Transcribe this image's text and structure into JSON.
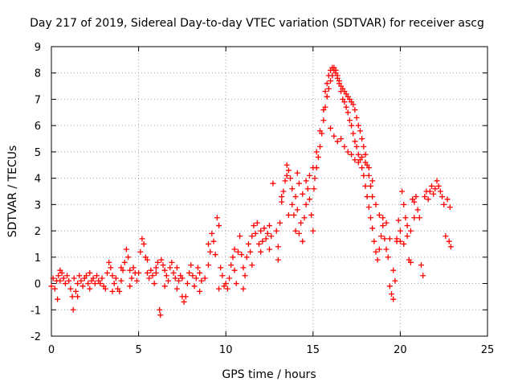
{
  "chart_data": {
    "type": "scatter",
    "title": "Day 217 of 2019, Sidereal Day-to-day VTEC variation (SDTVAR) for receiver ascg",
    "xlabel": "GPS time / hours",
    "ylabel": "SDTVAR / TECUs",
    "xlim": [
      0,
      25
    ],
    "ylim": [
      -2,
      9
    ],
    "xticks": [
      0,
      5,
      10,
      15,
      20,
      25
    ],
    "yticks": [
      -2,
      -1,
      0,
      1,
      2,
      3,
      4,
      5,
      6,
      7,
      8,
      9
    ],
    "x_tick_labels": [
      "0",
      "5",
      "10",
      "15",
      "20",
      "25"
    ],
    "y_tick_labels": [
      "-2",
      "-1",
      "0",
      "1",
      "2",
      "3",
      "4",
      "5",
      "6",
      "7",
      "8",
      "9"
    ],
    "grid": true,
    "marker": "+",
    "color": "#ff0000",
    "series": [
      {
        "name": "SDTVAR",
        "points": [
          [
            0.0,
            -0.1
          ],
          [
            0.1,
            0.2
          ],
          [
            0.2,
            -0.2
          ],
          [
            0.3,
            0.1
          ],
          [
            0.35,
            -0.6
          ],
          [
            0.4,
            0.3
          ],
          [
            0.5,
            0.1
          ],
          [
            0.6,
            0.4
          ],
          [
            0.7,
            0.2
          ],
          [
            0.8,
            0.0
          ],
          [
            0.9,
            0.3
          ],
          [
            1.0,
            0.1
          ],
          [
            1.1,
            -0.2
          ],
          [
            1.2,
            -0.5
          ],
          [
            1.25,
            -1.0
          ],
          [
            1.3,
            0.2
          ],
          [
            1.4,
            -0.3
          ],
          [
            1.5,
            0.0
          ],
          [
            1.6,
            0.3
          ],
          [
            1.7,
            0.1
          ],
          [
            1.8,
            -0.1
          ],
          [
            1.9,
            0.2
          ],
          [
            2.0,
            0.3
          ],
          [
            2.1,
            0.0
          ],
          [
            2.2,
            -0.2
          ],
          [
            2.3,
            0.1
          ],
          [
            2.4,
            0.2
          ],
          [
            2.5,
            0.0
          ],
          [
            2.6,
            0.3
          ],
          [
            2.7,
            0.1
          ],
          [
            2.8,
            0.0
          ],
          [
            2.9,
            0.2
          ],
          [
            3.0,
            -0.1
          ],
          [
            3.1,
            -0.2
          ],
          [
            3.2,
            0.4
          ],
          [
            3.3,
            0.8
          ],
          [
            3.4,
            0.6
          ],
          [
            3.5,
            0.3
          ],
          [
            3.6,
            0.0
          ],
          [
            3.7,
            0.2
          ],
          [
            3.8,
            -0.2
          ],
          [
            3.9,
            -0.3
          ],
          [
            4.0,
            0.1
          ],
          [
            4.1,
            0.5
          ],
          [
            4.2,
            0.8
          ],
          [
            4.3,
            1.3
          ],
          [
            4.4,
            1.0
          ],
          [
            4.5,
            0.5
          ],
          [
            4.6,
            0.2
          ],
          [
            4.7,
            0.6
          ],
          [
            4.8,
            0.4
          ],
          [
            4.9,
            0.1
          ],
          [
            5.0,
            0.4
          ],
          [
            5.1,
            1.2
          ],
          [
            5.2,
            1.7
          ],
          [
            5.3,
            1.5
          ],
          [
            5.4,
            1.0
          ],
          [
            5.5,
            0.4
          ],
          [
            5.6,
            0.2
          ],
          [
            5.7,
            0.5
          ],
          [
            5.8,
            0.3
          ],
          [
            5.9,
            0.0
          ],
          [
            6.0,
            0.6
          ],
          [
            6.1,
            0.8
          ],
          [
            6.2,
            -1.0
          ],
          [
            6.25,
            -1.2
          ],
          [
            6.3,
            0.9
          ],
          [
            6.4,
            0.7
          ],
          [
            6.5,
            0.5
          ],
          [
            6.6,
            0.3
          ],
          [
            6.7,
            0.1
          ],
          [
            6.8,
            0.6
          ],
          [
            6.9,
            0.8
          ],
          [
            7.0,
            0.4
          ],
          [
            7.1,
            0.2
          ],
          [
            7.2,
            0.6
          ],
          [
            7.3,
            0.1
          ],
          [
            7.4,
            0.3
          ],
          [
            7.5,
            -0.5
          ],
          [
            7.6,
            -0.7
          ],
          [
            7.7,
            -0.5
          ],
          [
            7.8,
            0.0
          ],
          [
            7.9,
            0.4
          ],
          [
            8.0,
            0.7
          ],
          [
            8.1,
            0.3
          ],
          [
            8.2,
            -0.1
          ],
          [
            8.3,
            0.2
          ],
          [
            8.4,
            0.6
          ],
          [
            8.5,
            0.4
          ],
          [
            8.6,
            0.1
          ],
          [
            8.8,
            0.2
          ],
          [
            9.0,
            0.7
          ],
          [
            9.1,
            1.2
          ],
          [
            9.2,
            1.9
          ],
          [
            9.3,
            1.6
          ],
          [
            9.4,
            1.1
          ],
          [
            9.5,
            2.5
          ],
          [
            9.6,
            2.2
          ],
          [
            9.7,
            0.6
          ],
          [
            9.8,
            0.3
          ],
          [
            9.9,
            -0.1
          ],
          [
            10.0,
            0.0
          ],
          [
            10.1,
            -0.2
          ],
          [
            10.2,
            0.2
          ],
          [
            10.3,
            0.7
          ],
          [
            10.4,
            1.0
          ],
          [
            10.5,
            0.5
          ],
          [
            10.6,
            0.0
          ],
          [
            10.7,
            1.2
          ],
          [
            10.8,
            1.8
          ],
          [
            10.9,
            1.1
          ],
          [
            11.0,
            0.6
          ],
          [
            11.1,
            0.3
          ],
          [
            11.2,
            1.0
          ],
          [
            11.3,
            1.5
          ],
          [
            11.4,
            1.2
          ],
          [
            11.5,
            1.8
          ],
          [
            11.6,
            2.2
          ],
          [
            11.7,
            1.9
          ],
          [
            11.8,
            2.3
          ],
          [
            11.9,
            1.5
          ],
          [
            12.0,
            1.2
          ],
          [
            12.1,
            1.6
          ],
          [
            12.2,
            2.1
          ],
          [
            12.3,
            1.7
          ],
          [
            12.4,
            1.9
          ],
          [
            12.5,
            2.2
          ],
          [
            12.6,
            1.8
          ],
          [
            12.7,
            3.8
          ],
          [
            12.9,
            2.0
          ],
          [
            13.0,
            1.4
          ],
          [
            13.1,
            2.3
          ],
          [
            13.2,
            3.1
          ],
          [
            13.3,
            3.5
          ],
          [
            13.4,
            3.9
          ],
          [
            13.5,
            4.1
          ],
          [
            13.6,
            4.3
          ],
          [
            13.7,
            4.0
          ],
          [
            13.8,
            3.6
          ],
          [
            13.9,
            2.6
          ],
          [
            14.0,
            3.3
          ],
          [
            14.1,
            4.2
          ],
          [
            14.2,
            3.8
          ],
          [
            14.3,
            2.3
          ],
          [
            14.4,
            1.6
          ],
          [
            14.5,
            2.5
          ],
          [
            14.6,
            3.0
          ],
          [
            14.7,
            3.6
          ],
          [
            14.8,
            3.2
          ],
          [
            14.9,
            2.6
          ],
          [
            15.0,
            2.0
          ],
          [
            15.05,
            3.6
          ],
          [
            15.1,
            4.0
          ],
          [
            15.2,
            4.4
          ],
          [
            15.3,
            4.8
          ],
          [
            15.4,
            5.2
          ],
          [
            15.5,
            5.7
          ],
          [
            15.6,
            6.2
          ],
          [
            15.7,
            6.7
          ],
          [
            15.8,
            7.1
          ],
          [
            15.9,
            7.4
          ],
          [
            16.0,
            7.7
          ],
          [
            16.1,
            7.9
          ],
          [
            16.2,
            8.1
          ],
          [
            16.3,
            8.0
          ],
          [
            16.4,
            7.8
          ],
          [
            16.5,
            7.6
          ],
          [
            16.6,
            7.3
          ],
          [
            16.7,
            7.0
          ],
          [
            16.8,
            6.9
          ],
          [
            16.9,
            6.7
          ],
          [
            17.0,
            6.5
          ],
          [
            17.1,
            6.2
          ],
          [
            17.2,
            6.0
          ],
          [
            17.3,
            5.7
          ],
          [
            17.4,
            5.4
          ],
          [
            17.5,
            5.2
          ],
          [
            17.6,
            4.9
          ],
          [
            17.7,
            4.7
          ],
          [
            17.8,
            4.4
          ],
          [
            17.9,
            4.1
          ],
          [
            18.0,
            3.7
          ],
          [
            18.1,
            3.3
          ],
          [
            18.2,
            2.9
          ],
          [
            18.3,
            2.5
          ],
          [
            18.4,
            2.1
          ],
          [
            18.5,
            1.6
          ],
          [
            18.6,
            1.2
          ],
          [
            18.7,
            0.9
          ],
          [
            18.8,
            1.3
          ],
          [
            18.9,
            1.8
          ],
          [
            19.0,
            2.2
          ],
          [
            19.1,
            1.7
          ],
          [
            19.2,
            1.3
          ],
          [
            19.3,
            1.0
          ],
          [
            19.4,
            -0.1
          ],
          [
            19.5,
            -0.4
          ],
          [
            19.6,
            -0.6
          ],
          [
            19.7,
            0.1
          ],
          [
            19.8,
            1.6
          ],
          [
            19.9,
            2.4
          ],
          [
            20.0,
            2.0
          ],
          [
            20.1,
            3.5
          ],
          [
            20.2,
            3.0
          ],
          [
            20.3,
            2.5
          ],
          [
            20.4,
            1.8
          ],
          [
            20.5,
            0.9
          ],
          [
            20.6,
            0.8
          ],
          [
            20.7,
            3.2
          ],
          [
            20.8,
            3.1
          ],
          [
            20.9,
            3.3
          ],
          [
            21.0,
            2.8
          ],
          [
            21.1,
            2.5
          ],
          [
            21.2,
            0.7
          ],
          [
            21.3,
            0.3
          ],
          [
            21.4,
            3.3
          ],
          [
            21.5,
            3.5
          ],
          [
            21.6,
            3.2
          ],
          [
            21.7,
            3.5
          ],
          [
            21.8,
            3.7
          ],
          [
            21.9,
            3.4
          ],
          [
            22.0,
            3.6
          ],
          [
            22.1,
            3.9
          ],
          [
            22.2,
            3.7
          ],
          [
            22.3,
            3.5
          ],
          [
            22.4,
            3.3
          ],
          [
            22.5,
            3.0
          ],
          [
            22.6,
            1.8
          ],
          [
            22.7,
            3.2
          ],
          [
            22.8,
            1.6
          ],
          [
            22.85,
            2.9
          ],
          [
            22.9,
            1.4
          ],
          [
            15.7,
            7.3
          ],
          [
            15.8,
            7.6
          ],
          [
            15.9,
            7.9
          ],
          [
            16.0,
            8.1
          ],
          [
            16.1,
            8.2
          ],
          [
            16.2,
            8.2
          ],
          [
            16.3,
            8.1
          ],
          [
            16.4,
            7.9
          ],
          [
            16.5,
            7.7
          ],
          [
            16.6,
            7.5
          ],
          [
            16.7,
            7.4
          ],
          [
            16.8,
            7.3
          ],
          [
            16.9,
            7.2
          ],
          [
            17.0,
            7.1
          ],
          [
            17.1,
            7.0
          ],
          [
            17.2,
            6.9
          ],
          [
            17.3,
            6.8
          ],
          [
            17.4,
            6.6
          ],
          [
            17.5,
            6.3
          ],
          [
            17.6,
            6.0
          ],
          [
            17.7,
            5.8
          ],
          [
            17.8,
            5.5
          ],
          [
            17.9,
            5.2
          ],
          [
            18.0,
            4.9
          ],
          [
            18.1,
            4.5
          ],
          [
            18.2,
            4.1
          ],
          [
            18.3,
            3.7
          ],
          [
            18.4,
            3.3
          ],
          [
            16.0,
            5.9
          ],
          [
            16.2,
            5.6
          ],
          [
            16.4,
            5.4
          ],
          [
            16.6,
            5.5
          ],
          [
            16.8,
            5.2
          ],
          [
            17.0,
            5.0
          ],
          [
            17.2,
            4.9
          ],
          [
            17.4,
            4.7
          ],
          [
            17.6,
            4.6
          ],
          [
            17.8,
            4.8
          ],
          [
            18.0,
            4.6
          ],
          [
            18.2,
            4.4
          ],
          [
            18.4,
            3.9
          ],
          [
            18.6,
            3.0
          ],
          [
            18.8,
            2.6
          ],
          [
            19.0,
            2.5
          ],
          [
            19.2,
            2.3
          ],
          [
            19.4,
            1.7
          ],
          [
            19.6,
            0.5
          ],
          [
            19.8,
            1.7
          ],
          [
            20.0,
            1.6
          ],
          [
            20.2,
            1.5
          ],
          [
            20.4,
            2.2
          ],
          [
            20.6,
            2.0
          ],
          [
            20.8,
            2.5
          ],
          [
            14.0,
            2.0
          ],
          [
            14.2,
            1.9
          ],
          [
            14.4,
            3.4
          ],
          [
            14.6,
            3.9
          ],
          [
            14.8,
            4.1
          ],
          [
            15.0,
            4.4
          ],
          [
            15.2,
            5.0
          ],
          [
            15.4,
            5.8
          ],
          [
            15.6,
            6.6
          ],
          [
            15.8,
            7.1
          ],
          [
            13.6,
            2.6
          ],
          [
            13.8,
            3.0
          ],
          [
            13.2,
            3.3
          ],
          [
            13.5,
            4.5
          ],
          [
            14.1,
            2.8
          ],
          [
            0.5,
            0.5
          ],
          [
            1.5,
            -0.5
          ],
          [
            2.2,
            0.4
          ],
          [
            3.5,
            -0.3
          ],
          [
            4.5,
            -0.1
          ],
          [
            5.5,
            0.9
          ],
          [
            6.5,
            -0.1
          ],
          [
            7.5,
            0.2
          ],
          [
            8.5,
            -0.3
          ],
          [
            9.0,
            1.5
          ],
          [
            9.6,
            -0.2
          ],
          [
            10.5,
            1.3
          ],
          [
            11.0,
            -0.2
          ],
          [
            11.5,
            0.7
          ],
          [
            12.0,
            2.0
          ],
          [
            12.5,
            1.3
          ],
          [
            13.0,
            0.9
          ],
          [
            7.2,
            -0.2
          ],
          [
            6.0,
            0.4
          ],
          [
            4.0,
            0.6
          ]
        ]
      }
    ]
  }
}
